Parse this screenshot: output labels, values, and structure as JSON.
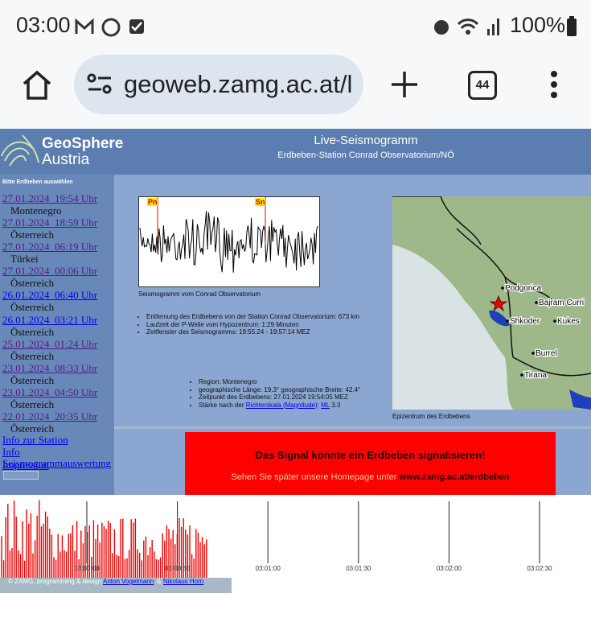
{
  "status_bar": {
    "time": "03:00",
    "battery": "100%"
  },
  "browser": {
    "url": "geoweb.zamg.ac.at/l",
    "tab_count": "44"
  },
  "header": {
    "logo_line1": "GeoSphere",
    "logo_line2": "Austria",
    "title": "Live-Seismogramm",
    "subtitle": "Erdbeben-Station Conrad Observatorium/NÖ"
  },
  "sidebar": {
    "heading": "Bitte Erdbeben auswählen",
    "quakes": [
      {
        "date": "27.01.2024  19:54 Uhr",
        "region": "Montenegro",
        "link_color": "#551a8b"
      },
      {
        "date": "27.01.2024  18:59 Uhr",
        "region": "Österreich",
        "link_color": "#551a8b"
      },
      {
        "date": "27.01.2024  06:19 Uhr",
        "region": "Türkei",
        "link_color": "#551a8b"
      },
      {
        "date": "27.01.2024  00:06 Uhr",
        "region": "Österreich",
        "link_color": "#551a8b"
      },
      {
        "date": "26.01.2024  06:40 Uhr",
        "region": "Österreich",
        "link_color": "#0000ee"
      },
      {
        "date": "26.01.2024  03:21 Uhr",
        "region": "Österreich",
        "link_color": "#0000ee"
      },
      {
        "date": "25.01.2024  01:24 Uhr",
        "region": "Österreich",
        "link_color": "#551a8b"
      },
      {
        "date": "23.01.2024  08:33 Uhr",
        "region": "Österreich",
        "link_color": "#551a8b"
      },
      {
        "date": "23.01.2024  04:50 Uhr",
        "region": "Österreich",
        "link_color": "#551a8b"
      },
      {
        "date": "22.01.2024  20:35 Uhr",
        "region": "Österreich",
        "link_color": "#551a8b"
      }
    ],
    "links": [
      "Info zur Station",
      "Info",
      "Seismogrammauswertung",
      "Impressum"
    ]
  },
  "seismogram": {
    "phases": [
      "Pn",
      "Sn"
    ],
    "caption": "Seismogramm vom Conrad Observatorium",
    "details": [
      "Entfernung des Erdbebens von der Station Conrad Observatorium: 673 km",
      "Laufzeit der P-Welle vom Hypozentrum: 1:29 Minuten",
      "Zeitfenster des Seismogramms: 19:55:24 - 19:57:14 MEZ"
    ]
  },
  "quake": {
    "region": "Region: Montenegro",
    "coordinates": "geographische Länge: 19.3° geographische Breite: 42.4°",
    "time": "Zeitpunkt des Erdbebens: 27.01.2024 19:54:05 MEZ",
    "magnitude_prefix": "Stärke nach der",
    "magnitude_link": "Richterskala (Magnitude)",
    "magnitude_separator": ":",
    "magnitude_scale": "ML",
    "magnitude_value": "3.3"
  },
  "map": {
    "places": [
      "Podgorica",
      "Bajram Curri",
      "Shkoder",
      "Kukes",
      "Burrel",
      "Tirana"
    ],
    "caption": "Epizentrum des Erdbebens"
  },
  "alert": {
    "title": "Das Signal könnte ein Erdbeben signalisieren!",
    "text": "Sehen Sie später unsere Homepage unter",
    "url": "www.zamg.ac.at/erdbeben"
  },
  "timeline": {
    "ticks": [
      "03:00:00",
      "03:00:30",
      "03:01:00",
      "03:01:30",
      "03:02:00",
      "03:02:30"
    ]
  },
  "footer": {
    "credit": "© ZAMG, programming & design:",
    "author1": "Anton Vogelmann",
    "and": "&",
    "author2": "Nikolaus Horn"
  }
}
